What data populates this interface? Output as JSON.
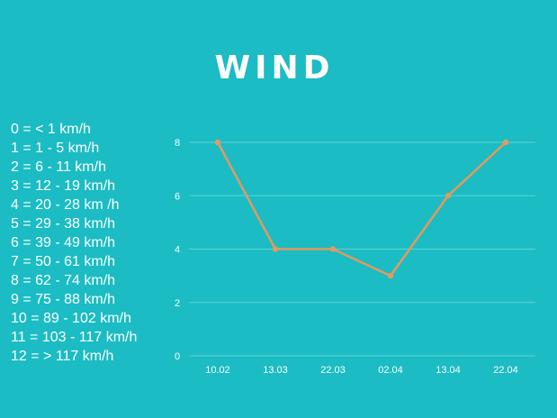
{
  "title": "WIND",
  "scale": [
    "0 = < 1 km/h",
    "1 = 1 - 5 km/h",
    "2 = 6 - 11 km/h",
    "3 = 12 - 19 km/h",
    "4 = 20 - 28 km /h",
    "5 = 29 - 38 km/h",
    "6 = 39 - 49 km/h",
    "7 = 50 - 61 km/h",
    "8 = 62 - 74 km/h",
    "9 = 75 - 88 km/h",
    "10 = 89 - 102 km/h",
    "11 = 103 - 117 km/h",
    "12 = > 117 km/h"
  ],
  "colors": {
    "background": "#1bbcc3",
    "line": "#e39a5f",
    "grid": "#5fd2d7",
    "text": "#ffffff"
  },
  "chart_data": {
    "type": "line",
    "title": "WIND",
    "categories": [
      "10.02",
      "13.03",
      "22.03",
      "02.04",
      "13.04",
      "22.04"
    ],
    "values": [
      8,
      4,
      4,
      3,
      6,
      8
    ],
    "yticks": [
      0,
      2,
      4,
      6,
      8
    ],
    "ylim": [
      0,
      8
    ],
    "grid": true,
    "legend": "none"
  }
}
